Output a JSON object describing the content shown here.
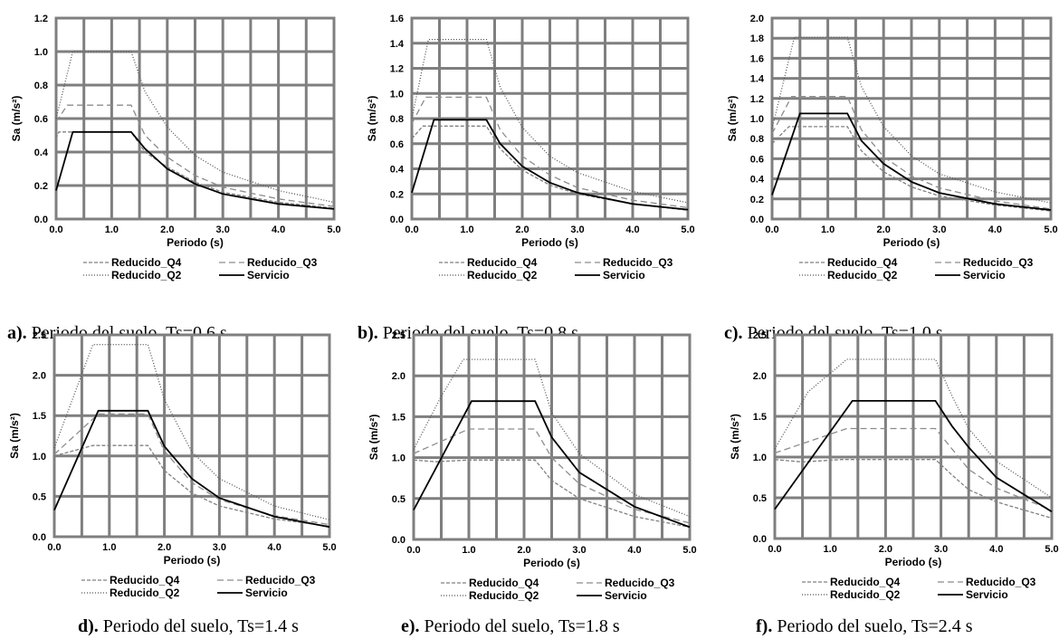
{
  "legend": [
    "Reducido_Q4",
    "Reducido_Q3",
    "Reducido_Q2",
    "Servicio"
  ],
  "series_styles": {
    "Reducido_Q4": {
      "color": "#808080",
      "dash": "4,2"
    },
    "Reducido_Q3": {
      "color": "#8c8c8c",
      "dash": "7,4"
    },
    "Reducido_Q2": {
      "color": "#555555",
      "dash": "1,2"
    },
    "Servicio": {
      "color": "#000000",
      "dash": ""
    }
  },
  "chart_data": [
    {
      "type": "line",
      "caption_label": "a).",
      "caption_text": " Periodo del suelo, Ts=0.6 s",
      "xlabel": "Periodo (s)",
      "ylabel": "Sa (m/s²)",
      "xlim": [
        0,
        5
      ],
      "ylim": [
        0,
        1.2
      ],
      "xticks": [
        "0.0",
        "1.0",
        "2.0",
        "3.0",
        "4.0",
        "5.0"
      ],
      "yticks": [
        "0.0",
        "0.2",
        "0.4",
        "0.6",
        "0.8",
        "1.0",
        "1.2"
      ],
      "grid": true,
      "legend_position": "bottom",
      "series": [
        {
          "name": "Reducido_Q4",
          "points": [
            [
              0,
              0.48
            ],
            [
              0.05,
              0.52
            ],
            [
              1.35,
              0.52
            ],
            [
              1.6,
              0.4
            ],
            [
              2,
              0.31
            ],
            [
              2.5,
              0.22
            ],
            [
              3,
              0.16
            ],
            [
              4,
              0.1
            ],
            [
              5,
              0.065
            ]
          ]
        },
        {
          "name": "Reducido_Q3",
          "points": [
            [
              0,
              0.58
            ],
            [
              0.2,
              0.68
            ],
            [
              1.35,
              0.68
            ],
            [
              1.6,
              0.5
            ],
            [
              2,
              0.37
            ],
            [
              2.5,
              0.26
            ],
            [
              3,
              0.19
            ],
            [
              4,
              0.12
            ],
            [
              5,
              0.075
            ]
          ]
        },
        {
          "name": "Reducido_Q2",
          "points": [
            [
              0,
              0.6
            ],
            [
              0.3,
              1.0
            ],
            [
              1.35,
              1.0
            ],
            [
              1.6,
              0.76
            ],
            [
              2,
              0.55
            ],
            [
              2.5,
              0.38
            ],
            [
              3,
              0.28
            ],
            [
              4,
              0.17
            ],
            [
              5,
              0.1
            ]
          ]
        },
        {
          "name": "Servicio",
          "points": [
            [
              0,
              0.17
            ],
            [
              0.3,
              0.52
            ],
            [
              1.35,
              0.52
            ],
            [
              1.6,
              0.42
            ],
            [
              2,
              0.3
            ],
            [
              2.5,
              0.21
            ],
            [
              3,
              0.15
            ],
            [
              4,
              0.09
            ],
            [
              5,
              0.06
            ]
          ]
        }
      ]
    },
    {
      "type": "line",
      "caption_label": "b).",
      "caption_text": " Periodo del suelo, Ts=0.8 s",
      "xlabel": "Periodo (s)",
      "ylabel": "Sa (m/s²)",
      "xlim": [
        0,
        5
      ],
      "ylim": [
        0,
        1.6
      ],
      "xticks": [
        "0.0",
        "1.0",
        "2.0",
        "3.0",
        "4.0",
        "5.0"
      ],
      "yticks": [
        "0.0",
        "0.2",
        "0.4",
        "0.6",
        "0.8",
        "1.0",
        "1.2",
        "1.4",
        "1.6"
      ],
      "grid": true,
      "legend_position": "bottom",
      "series": [
        {
          "name": "Reducido_Q4",
          "points": [
            [
              0,
              0.64
            ],
            [
              0.2,
              0.74
            ],
            [
              1.35,
              0.74
            ],
            [
              1.6,
              0.56
            ],
            [
              2,
              0.39
            ],
            [
              2.5,
              0.27
            ],
            [
              3,
              0.2
            ],
            [
              4,
              0.12
            ],
            [
              5,
              0.07
            ]
          ]
        },
        {
          "name": "Reducido_Q3",
          "points": [
            [
              0,
              0.76
            ],
            [
              0.25,
              0.97
            ],
            [
              1.35,
              0.97
            ],
            [
              1.6,
              0.71
            ],
            [
              2,
              0.5
            ],
            [
              2.5,
              0.35
            ],
            [
              3,
              0.25
            ],
            [
              4,
              0.15
            ],
            [
              5,
              0.09
            ]
          ]
        },
        {
          "name": "Reducido_Q2",
          "points": [
            [
              0,
              0.8
            ],
            [
              0.3,
              1.43
            ],
            [
              1.35,
              1.43
            ],
            [
              1.6,
              1.05
            ],
            [
              2,
              0.73
            ],
            [
              2.5,
              0.5
            ],
            [
              3,
              0.37
            ],
            [
              4,
              0.22
            ],
            [
              5,
              0.13
            ]
          ]
        },
        {
          "name": "Servicio",
          "points": [
            [
              0,
              0.21
            ],
            [
              0.4,
              0.79
            ],
            [
              1.35,
              0.79
            ],
            [
              1.6,
              0.6
            ],
            [
              2,
              0.42
            ],
            [
              2.5,
              0.29
            ],
            [
              3,
              0.21
            ],
            [
              4,
              0.12
            ],
            [
              5,
              0.075
            ]
          ]
        }
      ]
    },
    {
      "type": "line",
      "caption_label": "c).",
      "caption_text": " Periodo del suelo, Ts=1.0 s",
      "xlabel": "Periodo (s)",
      "ylabel": "Sa (m/s²)",
      "xlim": [
        0,
        5
      ],
      "ylim": [
        0,
        2.0
      ],
      "xticks": [
        "0.0",
        "1.0",
        "2.0",
        "3.0",
        "4.0",
        "5.0"
      ],
      "yticks": [
        "0.0",
        "0.2",
        "0.4",
        "0.6",
        "0.8",
        "1.0",
        "1.2",
        "1.4",
        "1.6",
        "1.8",
        "2.0"
      ],
      "grid": true,
      "legend_position": "bottom",
      "series": [
        {
          "name": "Reducido_Q4",
          "points": [
            [
              0,
              0.75
            ],
            [
              0.3,
              0.92
            ],
            [
              1.35,
              0.92
            ],
            [
              1.6,
              0.68
            ],
            [
              2,
              0.47
            ],
            [
              2.5,
              0.32
            ],
            [
              3,
              0.23
            ],
            [
              4,
              0.14
            ],
            [
              5,
              0.08
            ]
          ]
        },
        {
          "name": "Reducido_Q3",
          "points": [
            [
              0,
              0.85
            ],
            [
              0.35,
              1.22
            ],
            [
              1.35,
              1.22
            ],
            [
              1.6,
              0.89
            ],
            [
              2,
              0.62
            ],
            [
              2.5,
              0.43
            ],
            [
              3,
              0.31
            ],
            [
              4,
              0.18
            ],
            [
              5,
              0.1
            ]
          ]
        },
        {
          "name": "Reducido_Q2",
          "points": [
            [
              0,
              0.9
            ],
            [
              0.4,
              1.81
            ],
            [
              1.35,
              1.81
            ],
            [
              1.6,
              1.32
            ],
            [
              2,
              0.92
            ],
            [
              2.5,
              0.63
            ],
            [
              3,
              0.45
            ],
            [
              4,
              0.27
            ],
            [
              5,
              0.16
            ]
          ]
        },
        {
          "name": "Servicio",
          "points": [
            [
              0,
              0.24
            ],
            [
              0.5,
              1.05
            ],
            [
              1.35,
              1.05
            ],
            [
              1.6,
              0.78
            ],
            [
              2,
              0.55
            ],
            [
              2.5,
              0.37
            ],
            [
              3,
              0.26
            ],
            [
              4,
              0.15
            ],
            [
              5,
              0.09
            ]
          ]
        }
      ]
    },
    {
      "type": "line",
      "caption_label": "d).",
      "caption_text": " Periodo del suelo, Ts=1.4 s",
      "xlabel": "Periodo (s)",
      "ylabel": "Sa (m/s²)",
      "xlim": [
        0,
        5
      ],
      "ylim": [
        0,
        2.5
      ],
      "xticks": [
        "0.0",
        "1.0",
        "2.0",
        "3.0",
        "4.0",
        "5.0"
      ],
      "yticks": [
        "0.0",
        "0.5",
        "1.0",
        "1.5",
        "2.0",
        "2.5"
      ],
      "grid": true,
      "legend_position": "bottom",
      "series": [
        {
          "name": "Reducido_Q4",
          "points": [
            [
              0,
              1.0
            ],
            [
              0.7,
              1.13
            ],
            [
              1.7,
              1.13
            ],
            [
              2,
              0.82
            ],
            [
              2.5,
              0.54
            ],
            [
              3,
              0.38
            ],
            [
              4,
              0.22
            ],
            [
              5,
              0.13
            ]
          ]
        },
        {
          "name": "Reducido_Q3",
          "points": [
            [
              0,
              1.02
            ],
            [
              0.8,
              1.52
            ],
            [
              1.7,
              1.52
            ],
            [
              2,
              1.06
            ],
            [
              2.5,
              0.67
            ],
            [
              3,
              0.46
            ],
            [
              4,
              0.26
            ],
            [
              5,
              0.15
            ]
          ]
        },
        {
          "name": "Reducido_Q2",
          "points": [
            [
              0,
              1.1
            ],
            [
              0.7,
              2.38
            ],
            [
              1.7,
              2.38
            ],
            [
              2,
              1.7
            ],
            [
              2.5,
              1.05
            ],
            [
              3,
              0.72
            ],
            [
              4,
              0.38
            ],
            [
              5,
              0.21
            ]
          ]
        },
        {
          "name": "Servicio",
          "points": [
            [
              0,
              0.33
            ],
            [
              0.8,
              1.56
            ],
            [
              1.7,
              1.56
            ],
            [
              2,
              1.12
            ],
            [
              2.5,
              0.72
            ],
            [
              3,
              0.48
            ],
            [
              4,
              0.25
            ],
            [
              5,
              0.12
            ]
          ]
        }
      ]
    },
    {
      "type": "line",
      "caption_label": "e).",
      "caption_text": " Periodo del suelo, Ts=1.8 s",
      "xlabel": "Periodo (s)",
      "ylabel": "Sa (m/s²)",
      "xlim": [
        0,
        5
      ],
      "ylim": [
        0,
        2.5
      ],
      "xticks": [
        "0.0",
        "1.0",
        "2.0",
        "3.0",
        "4.0",
        "5.0"
      ],
      "yticks": [
        "0.0",
        "0.5",
        "1.0",
        "1.5",
        "2.0",
        "2.5"
      ],
      "grid": true,
      "legend_position": "bottom",
      "series": [
        {
          "name": "Reducido_Q4",
          "points": [
            [
              0,
              0.97
            ],
            [
              0.4,
              0.95
            ],
            [
              1,
              0.97
            ],
            [
              2.2,
              0.97
            ],
            [
              2.5,
              0.72
            ],
            [
              3,
              0.5
            ],
            [
              4,
              0.28
            ],
            [
              5,
              0.15
            ]
          ]
        },
        {
          "name": "Reducido_Q3",
          "points": [
            [
              0,
              1.05
            ],
            [
              1,
              1.35
            ],
            [
              2.2,
              1.35
            ],
            [
              2.5,
              1.0
            ],
            [
              3,
              0.68
            ],
            [
              4,
              0.37
            ],
            [
              5,
              0.2
            ]
          ]
        },
        {
          "name": "Reducido_Q2",
          "points": [
            [
              0,
              1.1
            ],
            [
              0.5,
              1.75
            ],
            [
              0.9,
              2.2
            ],
            [
              2.2,
              2.2
            ],
            [
              2.5,
              1.55
            ],
            [
              3,
              1.05
            ],
            [
              4,
              0.55
            ],
            [
              5,
              0.28
            ]
          ]
        },
        {
          "name": "Servicio",
          "points": [
            [
              0,
              0.36
            ],
            [
              1.05,
              1.69
            ],
            [
              2.2,
              1.69
            ],
            [
              2.5,
              1.25
            ],
            [
              3,
              0.82
            ],
            [
              4,
              0.4
            ],
            [
              5,
              0.15
            ]
          ]
        }
      ]
    },
    {
      "type": "line",
      "caption_label": "f).",
      "caption_text": " Periodo del suelo, Ts=2.4 s",
      "xlabel": "Periodo (s)",
      "ylabel": "Sa (m/s²)",
      "xlim": [
        0,
        5
      ],
      "ylim": [
        0,
        2.5
      ],
      "xticks": [
        "0.0",
        "1.0",
        "2.0",
        "3.0",
        "4.0",
        "5.0"
      ],
      "yticks": [
        "0.0",
        "0.5",
        "1.0",
        "1.5",
        "2.0",
        "2.5"
      ],
      "grid": true,
      "legend_position": "bottom",
      "series": [
        {
          "name": "Reducido_Q4",
          "points": [
            [
              0,
              0.97
            ],
            [
              0.5,
              0.94
            ],
            [
              1.2,
              0.97
            ],
            [
              2.9,
              0.97
            ],
            [
              3.2,
              0.78
            ],
            [
              3.5,
              0.6
            ],
            [
              4,
              0.45
            ],
            [
              5,
              0.25
            ]
          ]
        },
        {
          "name": "Reducido_Q3",
          "points": [
            [
              0,
              1.05
            ],
            [
              1.3,
              1.35
            ],
            [
              2.9,
              1.35
            ],
            [
              3.2,
              1.1
            ],
            [
              3.5,
              0.85
            ],
            [
              4,
              0.62
            ],
            [
              5,
              0.35
            ]
          ]
        },
        {
          "name": "Reducido_Q2",
          "points": [
            [
              0,
              1.1
            ],
            [
              0.6,
              1.8
            ],
            [
              1.3,
              2.2
            ],
            [
              2.9,
              2.2
            ],
            [
              3.2,
              1.75
            ],
            [
              3.5,
              1.35
            ],
            [
              4,
              0.95
            ],
            [
              5,
              0.5
            ]
          ]
        },
        {
          "name": "Servicio",
          "points": [
            [
              0,
              0.36
            ],
            [
              1.4,
              1.69
            ],
            [
              2.9,
              1.69
            ],
            [
              3.2,
              1.38
            ],
            [
              3.5,
              1.12
            ],
            [
              4,
              0.75
            ],
            [
              5,
              0.33
            ]
          ]
        }
      ]
    }
  ]
}
